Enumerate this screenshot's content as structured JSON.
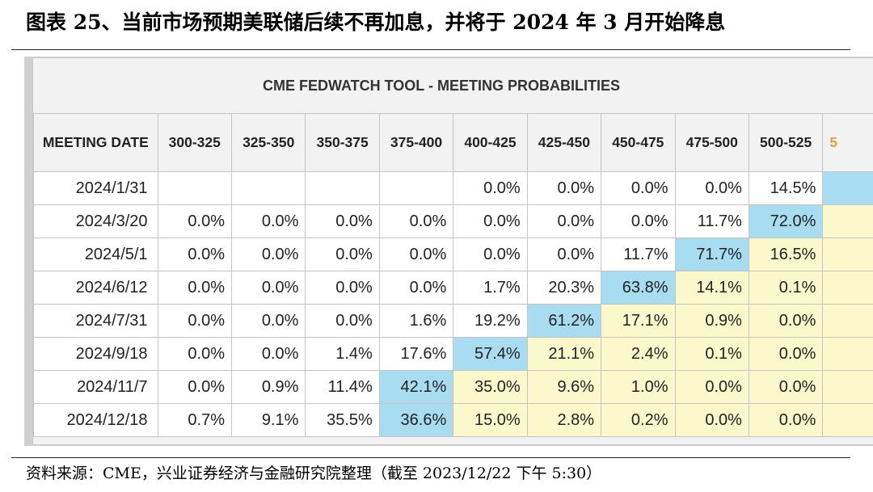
{
  "figure_title": "图表 25、当前市场预期美联储后续不再加息，并将于 2024 年 3 月开始降息",
  "tool_title": "CME FEDWATCH TOOL - MEETING PROBABILITIES",
  "columns": [
    "MEETING DATE",
    "300-325",
    "325-350",
    "350-375",
    "375-400",
    "400-425",
    "425-450",
    "450-475",
    "475-500",
    "500-525",
    "5"
  ],
  "rows": [
    {
      "date": "2024/1/31",
      "cells": [
        "",
        "",
        "",
        "",
        "0.0%",
        "0.0%",
        "0.0%",
        "0.0%",
        "14.5%",
        ""
      ],
      "hl": [
        "",
        "",
        "",
        "",
        "",
        "",
        "",
        "",
        "",
        "blue"
      ]
    },
    {
      "date": "2024/3/20",
      "cells": [
        "0.0%",
        "0.0%",
        "0.0%",
        "0.0%",
        "0.0%",
        "0.0%",
        "0.0%",
        "11.7%",
        "72.0%",
        ""
      ],
      "hl": [
        "",
        "",
        "",
        "",
        "",
        "",
        "",
        "",
        "blue",
        "yellow"
      ]
    },
    {
      "date": "2024/5/1",
      "cells": [
        "0.0%",
        "0.0%",
        "0.0%",
        "0.0%",
        "0.0%",
        "0.0%",
        "11.7%",
        "71.7%",
        "16.5%",
        ""
      ],
      "hl": [
        "",
        "",
        "",
        "",
        "",
        "",
        "",
        "blue",
        "yellow",
        "yellow"
      ]
    },
    {
      "date": "2024/6/12",
      "cells": [
        "0.0%",
        "0.0%",
        "0.0%",
        "0.0%",
        "1.7%",
        "20.3%",
        "63.8%",
        "14.1%",
        "0.1%",
        ""
      ],
      "hl": [
        "",
        "",
        "",
        "",
        "",
        "",
        "blue",
        "yellow",
        "yellow",
        "yellow"
      ]
    },
    {
      "date": "2024/7/31",
      "cells": [
        "0.0%",
        "0.0%",
        "0.0%",
        "1.6%",
        "19.2%",
        "61.2%",
        "17.1%",
        "0.9%",
        "0.0%",
        ""
      ],
      "hl": [
        "",
        "",
        "",
        "",
        "",
        "blue",
        "yellow",
        "yellow",
        "yellow",
        "yellow"
      ]
    },
    {
      "date": "2024/9/18",
      "cells": [
        "0.0%",
        "0.0%",
        "1.4%",
        "17.6%",
        "57.4%",
        "21.1%",
        "2.4%",
        "0.1%",
        "0.0%",
        ""
      ],
      "hl": [
        "",
        "",
        "",
        "",
        "blue",
        "yellow",
        "yellow",
        "yellow",
        "yellow",
        "yellow"
      ]
    },
    {
      "date": "2024/11/7",
      "cells": [
        "0.0%",
        "0.9%",
        "11.4%",
        "42.1%",
        "35.0%",
        "9.6%",
        "1.0%",
        "0.0%",
        "0.0%",
        ""
      ],
      "hl": [
        "",
        "",
        "",
        "blue",
        "yellow",
        "yellow",
        "yellow",
        "yellow",
        "yellow",
        "yellow"
      ]
    },
    {
      "date": "2024/12/18",
      "cells": [
        "0.7%",
        "9.1%",
        "35.5%",
        "36.6%",
        "15.0%",
        "2.8%",
        "0.2%",
        "0.0%",
        "0.0%",
        ""
      ],
      "hl": [
        "",
        "",
        "",
        "blue",
        "yellow",
        "yellow",
        "yellow",
        "yellow",
        "yellow",
        "yellow"
      ]
    }
  ],
  "source": "资料来源：CME，兴业证券经济与金融研究院整理（截至 2023/12/22 下午 5:30）"
}
